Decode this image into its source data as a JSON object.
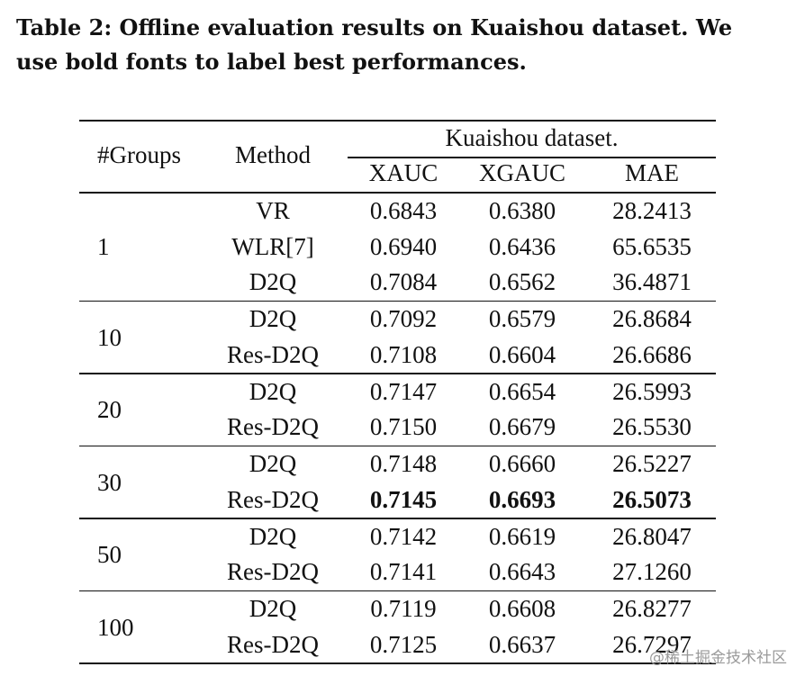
{
  "caption": {
    "line1": "Table 2: Offline evaluation results on Kuaishou dataset. We",
    "line2": "use bold fonts to label best performances."
  },
  "table": {
    "headers": {
      "groups": "#Groups",
      "method": "Method",
      "dataset": "Kuaishou dataset.",
      "xauc": "XAUC",
      "xgauc": "XGAUC",
      "mae": "MAE"
    },
    "groups": [
      {
        "groups": "1",
        "rows": [
          {
            "method": "VR",
            "xauc": "0.6843",
            "xgauc": "0.6380",
            "mae": "28.2413"
          },
          {
            "method": "WLR[7]",
            "xauc": "0.6940",
            "xgauc": "0.6436",
            "mae": "65.6535"
          },
          {
            "method": "D2Q",
            "xauc": "0.7084",
            "xgauc": "0.6562",
            "mae": "36.4871"
          }
        ]
      },
      {
        "groups": "10",
        "rows": [
          {
            "method": "D2Q",
            "xauc": "0.7092",
            "xgauc": "0.6579",
            "mae": "26.8684"
          },
          {
            "method": "Res-D2Q",
            "xauc": "0.7108",
            "xgauc": "0.6604",
            "mae": "26.6686"
          }
        ]
      },
      {
        "groups": "20",
        "rows": [
          {
            "method": "D2Q",
            "xauc": "0.7147",
            "xgauc": "0.6654",
            "mae": "26.5993"
          },
          {
            "method": "Res-D2Q",
            "xauc": "0.7150",
            "xgauc": "0.6679",
            "mae": "26.5530"
          }
        ]
      },
      {
        "groups": "30",
        "rows": [
          {
            "method": "D2Q",
            "xauc": "0.7148",
            "xgauc": "0.6660",
            "mae": "26.5227"
          },
          {
            "method": "Res-D2Q",
            "xauc": "0.7145",
            "xgauc": "0.6693",
            "mae": "26.5073",
            "bold": true
          }
        ]
      },
      {
        "groups": "50",
        "rows": [
          {
            "method": "D2Q",
            "xauc": "0.7142",
            "xgauc": "0.6619",
            "mae": "26.8047"
          },
          {
            "method": "Res-D2Q",
            "xauc": "0.7141",
            "xgauc": "0.6643",
            "mae": "27.1260"
          }
        ]
      },
      {
        "groups": "100",
        "rows": [
          {
            "method": "D2Q",
            "xauc": "0.7119",
            "xgauc": "0.6608",
            "mae": "26.8277"
          },
          {
            "method": "Res-D2Q",
            "xauc": "0.7125",
            "xgauc": "0.6637",
            "mae": "26.7297"
          }
        ]
      }
    ]
  },
  "watermark": "@稀土掘金技术社区"
}
